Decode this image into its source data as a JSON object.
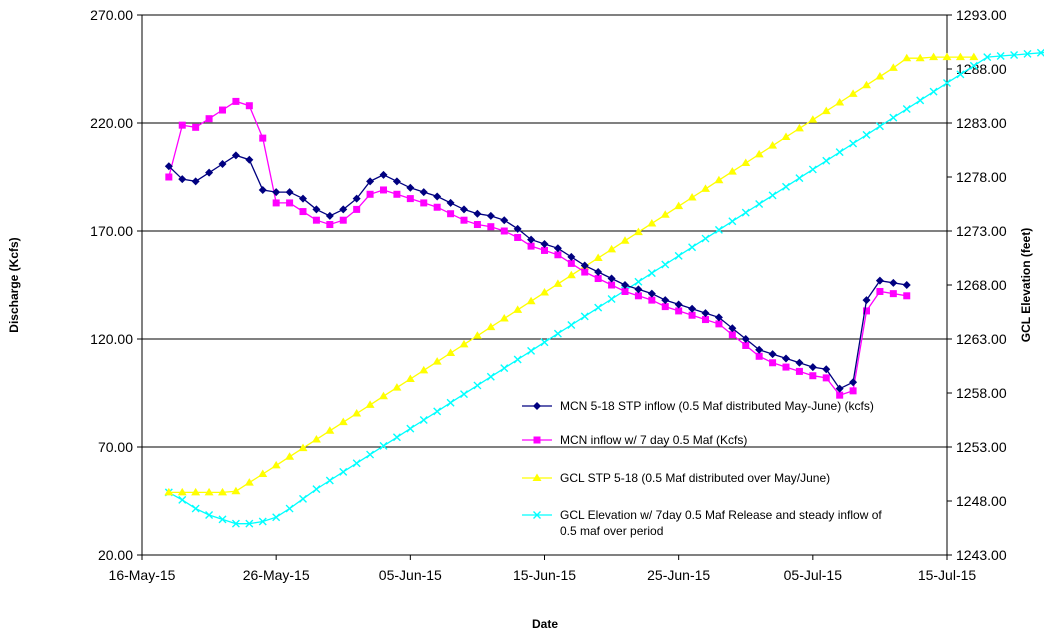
{
  "chart_data": {
    "type": "line",
    "xlabel": "Date",
    "ylabel": "Discharge (Kcfs)",
    "y2label": "GCL Elevation (feet)",
    "x_ticks": [
      "16-May-15",
      "26-May-15",
      "05-Jun-15",
      "15-Jun-15",
      "25-Jun-15",
      "05-Jul-15",
      "15-Jul-15"
    ],
    "y_ticks": [
      "20.00",
      "70.00",
      "120.00",
      "170.00",
      "220.00",
      "270.00"
    ],
    "y2_ticks": [
      "1243.00",
      "1248.00",
      "1253.00",
      "1258.00",
      "1263.00",
      "1268.00",
      "1273.00",
      "1278.00",
      "1283.00",
      "1288.00",
      "1293.00"
    ],
    "xlim": [
      "2015-05-16",
      "2015-07-15"
    ],
    "ylim": [
      20,
      270
    ],
    "y2lim": [
      1243,
      1293
    ],
    "grid": "horizontal",
    "legend_position": "lower-right",
    "start_date": "2015-05-18",
    "series": [
      {
        "name": "MCN 5-18 STP inflow (0.5 Maf distributed May-June) (kcfs)",
        "axis": "left",
        "color": "#000080",
        "marker": "diamond",
        "values": [
          200,
          194,
          193,
          197,
          201,
          205,
          203,
          189,
          188,
          188,
          185,
          180,
          177,
          180,
          185,
          193,
          196,
          193,
          190,
          188,
          186,
          183,
          180,
          178,
          177,
          175,
          171,
          166,
          164,
          162,
          158,
          154,
          151,
          148,
          145,
          143,
          141,
          138,
          136,
          134,
          132,
          130,
          125,
          120,
          115,
          113,
          111,
          109,
          107,
          106,
          97,
          100,
          138,
          147,
          146,
          145
        ]
      },
      {
        "name": "MCN inflow w/ 7 day 0.5 Maf (Kcfs)",
        "axis": "left",
        "color": "#FF00FF",
        "marker": "square",
        "values": [
          195,
          219,
          218,
          222,
          226,
          230,
          228,
          213,
          183,
          183,
          179,
          175,
          173,
          175,
          180,
          187,
          189,
          187,
          185,
          183,
          181,
          178,
          175,
          173,
          172,
          170,
          167,
          163,
          161,
          159,
          155,
          151,
          148,
          145,
          142,
          140,
          138,
          135,
          133,
          131,
          129,
          127,
          122,
          117,
          112,
          109,
          107,
          105,
          103,
          102,
          94,
          96,
          133,
          142,
          141,
          140
        ]
      },
      {
        "name": "GCL STP 5-18 (0.5 Maf distributed over May/June)",
        "axis": "right",
        "color": "#FFFF00",
        "marker": "triangle",
        "values": [
          1248.8,
          1248.8,
          1248.8,
          1248.8,
          1248.8,
          1248.9,
          1249.7,
          1250.5,
          1251.3,
          1252.1,
          1252.9,
          1253.7,
          1254.5,
          1255.3,
          1256.1,
          1256.9,
          1257.7,
          1258.5,
          1259.3,
          1260.1,
          1260.9,
          1261.7,
          1262.5,
          1263.3,
          1264.1,
          1264.9,
          1265.7,
          1266.5,
          1267.3,
          1268.1,
          1268.9,
          1269.7,
          1270.5,
          1271.3,
          1272.1,
          1272.9,
          1273.7,
          1274.5,
          1275.3,
          1276.1,
          1276.9,
          1277.7,
          1278.5,
          1279.3,
          1280.1,
          1280.9,
          1281.7,
          1282.5,
          1283.3,
          1284.1,
          1284.9,
          1285.7,
          1286.5,
          1287.3,
          1288.1,
          1289.0,
          1289.0,
          1289.1,
          1289.1,
          1289.1,
          1289.1
        ]
      },
      {
        "name": "GCL Elevation w/ 7day 0.5 Maf Release and steady inflow of 0.5 maf over period",
        "axis": "right",
        "color": "#00FFFF",
        "marker": "x",
        "values": [
          1248.8,
          1248.1,
          1247.3,
          1246.7,
          1246.3,
          1245.9,
          1245.9,
          1246.1,
          1246.5,
          1247.3,
          1248.2,
          1249.1,
          1249.9,
          1250.7,
          1251.5,
          1252.3,
          1253.1,
          1253.9,
          1254.7,
          1255.5,
          1256.3,
          1257.1,
          1257.9,
          1258.7,
          1259.5,
          1260.3,
          1261.1,
          1261.9,
          1262.7,
          1263.5,
          1264.3,
          1265.1,
          1265.9,
          1266.7,
          1267.5,
          1268.3,
          1269.1,
          1269.9,
          1270.7,
          1271.5,
          1272.3,
          1273.1,
          1273.9,
          1274.7,
          1275.5,
          1276.3,
          1277.1,
          1277.9,
          1278.7,
          1279.5,
          1280.3,
          1281.1,
          1281.9,
          1282.7,
          1283.5,
          1284.3,
          1285.1,
          1285.9,
          1286.7,
          1287.5,
          1288.3,
          1289.1,
          1289.2,
          1289.3,
          1289.4,
          1289.5,
          1289.6
        ]
      }
    ]
  }
}
